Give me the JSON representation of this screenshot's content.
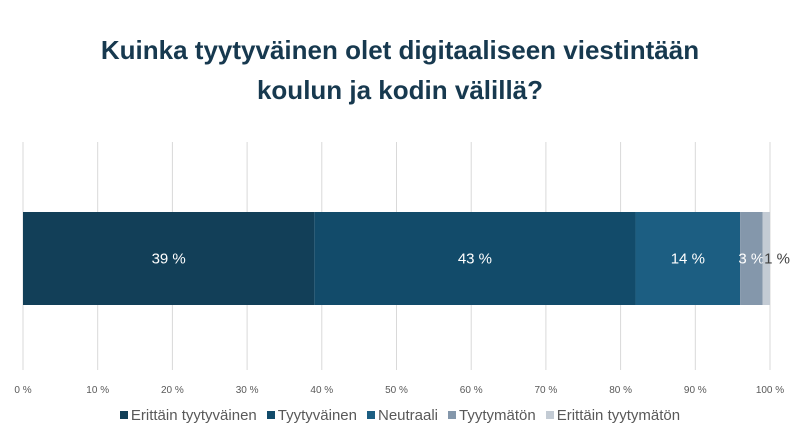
{
  "chart_data": {
    "type": "bar",
    "orientation": "horizontal-stacked",
    "title_lines": [
      "Kuinka tyytyväinen olet digitaaliseen viestintään",
      "koulun ja kodin välillä?"
    ],
    "xlim": [
      0,
      100
    ],
    "x_ticks": [
      "0 %",
      "10 %",
      "20 %",
      "30 %",
      "40 %",
      "50 %",
      "60 %",
      "70 %",
      "80 %",
      "90 %",
      "100 %"
    ],
    "grid": true,
    "legend_position": "bottom",
    "series": [
      {
        "name": "Erittäin tyytyväinen",
        "values": [
          39
        ],
        "label": "39 %",
        "color": "#123f58"
      },
      {
        "name": "Tyytyväinen",
        "values": [
          43
        ],
        "label": "43 %",
        "color": "#124b6a"
      },
      {
        "name": "Neutraali",
        "values": [
          14
        ],
        "label": "14 %",
        "color": "#1c5e82"
      },
      {
        "name": "Tyytymätön",
        "values": [
          3
        ],
        "label": "3 %",
        "color": "#8497ab"
      },
      {
        "name": "Erittäin tyytymätön",
        "values": [
          1
        ],
        "label": "1 %",
        "color": "#c3cbd4"
      }
    ]
  }
}
